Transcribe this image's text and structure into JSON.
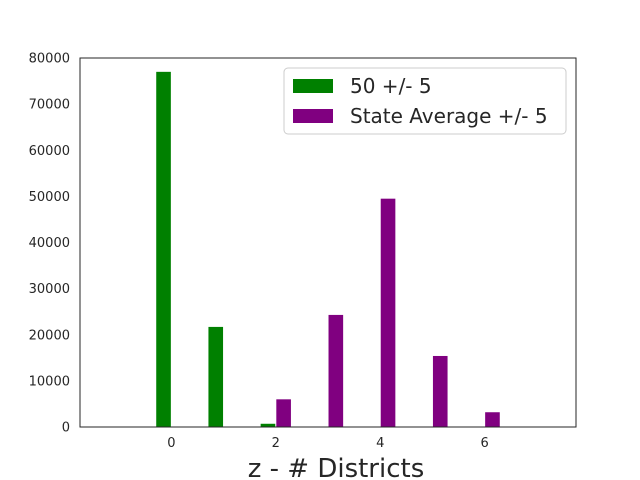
{
  "chart_data": {
    "type": "bar",
    "title": "",
    "xlabel": "z - # Districts",
    "ylabel": "",
    "xlim": [
      -1.75,
      7.75
    ],
    "ylim": [
      0,
      80000
    ],
    "xticks": [
      0,
      2,
      4,
      6
    ],
    "yticks": [
      0,
      10000,
      20000,
      30000,
      40000,
      50000,
      60000,
      70000,
      80000
    ],
    "grid": false,
    "legend_position": "top-right",
    "series": [
      {
        "name": "50 +/- 5",
        "color": "#008000",
        "x": [
          0,
          1,
          2,
          3,
          4,
          5,
          6,
          7
        ],
        "values": [
          77000,
          21700,
          700,
          0,
          0,
          0,
          0,
          0
        ]
      },
      {
        "name": "State Average +/- 5",
        "color": "#800080",
        "x": [
          0,
          1,
          2,
          3,
          4,
          5,
          6,
          7
        ],
        "values": [
          0,
          0,
          6000,
          24300,
          49500,
          15400,
          3200,
          0
        ]
      }
    ]
  }
}
